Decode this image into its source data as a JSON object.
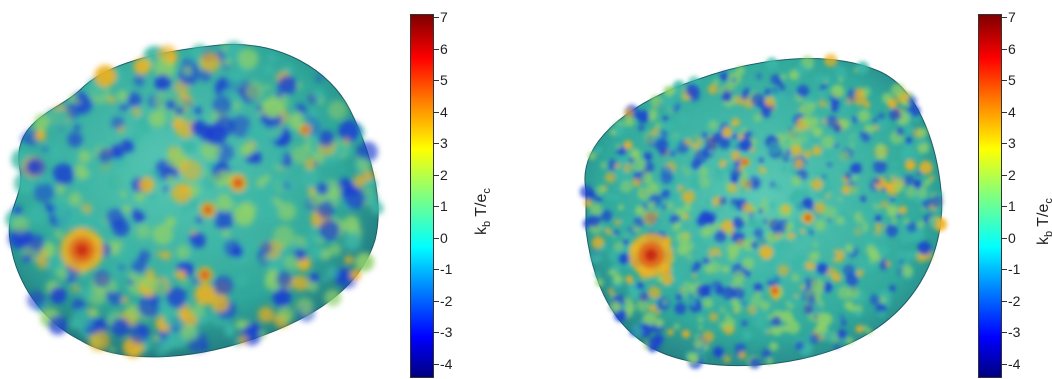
{
  "panels": [
    {
      "colorbar": {
        "label_k": "k",
        "label_b": "b",
        "label_mid": " T/e",
        "label_c": "c",
        "ticks": [
          "7",
          "6",
          "5",
          "4",
          "3",
          "2",
          "1",
          "0",
          "-1",
          "-2",
          "-3",
          "-4"
        ]
      }
    },
    {
      "colorbar": {
        "label_k": "k",
        "label_b": "b",
        "label_mid": " T/e",
        "label_c": "c",
        "ticks": [
          "7",
          "6",
          "5",
          "4",
          "3",
          "2",
          "1",
          "0",
          "-1",
          "-2",
          "-3",
          "-4"
        ]
      }
    }
  ],
  "colors": {
    "surface_base": "#3bb7a7",
    "low": "#1b3fd0",
    "mid": "#8ed06a",
    "high": "#f2b11d",
    "peak": "#c81d12"
  }
}
